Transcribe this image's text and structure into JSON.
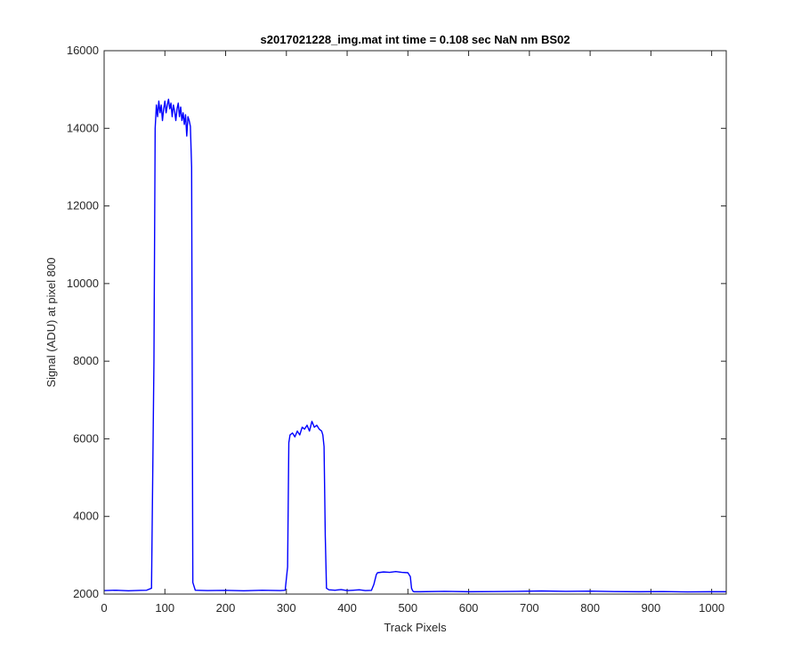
{
  "chart_data": {
    "type": "line",
    "title": "s2017021228_img.mat int time = 0.108 sec  NaN nm BS02",
    "xlabel": "Track Pixels",
    "ylabel": "Signal (ADU) at pixel 800",
    "xlim": [
      0,
      1024
    ],
    "ylim": [
      2000,
      16000
    ],
    "xticks": [
      "0",
      "100",
      "200",
      "300",
      "400",
      "500",
      "600",
      "700",
      "800",
      "900",
      "1000"
    ],
    "yticks": [
      "2000",
      "4000",
      "6000",
      "8000",
      "10000",
      "12000",
      "14000",
      "16000"
    ],
    "grid": false,
    "line_color": "#0000ff",
    "series": [
      {
        "x": [
          0,
          20,
          40,
          60,
          70,
          78,
          82,
          84,
          86,
          88,
          90,
          92,
          94,
          96,
          98,
          100,
          102,
          104,
          106,
          108,
          110,
          112,
          114,
          116,
          118,
          120,
          122,
          124,
          126,
          128,
          130,
          132,
          134,
          136,
          138,
          140,
          142,
          144,
          146,
          150,
          170,
          200,
          230,
          260,
          290,
          298,
          302,
          304,
          306,
          310,
          314,
          318,
          322,
          326,
          330,
          334,
          338,
          342,
          346,
          350,
          354,
          358,
          360,
          362,
          364,
          366,
          370,
          380,
          390,
          400,
          410,
          420,
          430,
          440,
          444,
          448,
          450,
          460,
          470,
          480,
          490,
          500,
          504,
          506,
          508,
          510,
          520,
          560,
          600,
          640,
          680,
          720,
          760,
          800,
          840,
          880,
          920,
          960,
          1000,
          1024
        ],
        "y": [
          2090,
          2100,
          2085,
          2095,
          2100,
          2150,
          8000,
          14000,
          14600,
          14300,
          14700,
          14400,
          14600,
          14200,
          14500,
          14700,
          14400,
          14600,
          14750,
          14500,
          14650,
          14300,
          14600,
          14450,
          14200,
          14500,
          14650,
          14300,
          14550,
          14200,
          14400,
          14100,
          14350,
          13800,
          14300,
          14200,
          14050,
          13000,
          2300,
          2100,
          2090,
          2095,
          2085,
          2100,
          2090,
          2100,
          2700,
          5900,
          6100,
          6150,
          6050,
          6200,
          6100,
          6300,
          6250,
          6350,
          6200,
          6450,
          6300,
          6350,
          6250,
          6200,
          6100,
          5800,
          3500,
          2150,
          2110,
          2100,
          2115,
          2090,
          2100,
          2110,
          2090,
          2095,
          2250,
          2500,
          2550,
          2570,
          2560,
          2580,
          2560,
          2550,
          2450,
          2150,
          2080,
          2060,
          2060,
          2070,
          2060,
          2065,
          2070,
          2080,
          2070,
          2075,
          2065,
          2060,
          2065,
          2055,
          2060,
          2060
        ]
      }
    ]
  }
}
